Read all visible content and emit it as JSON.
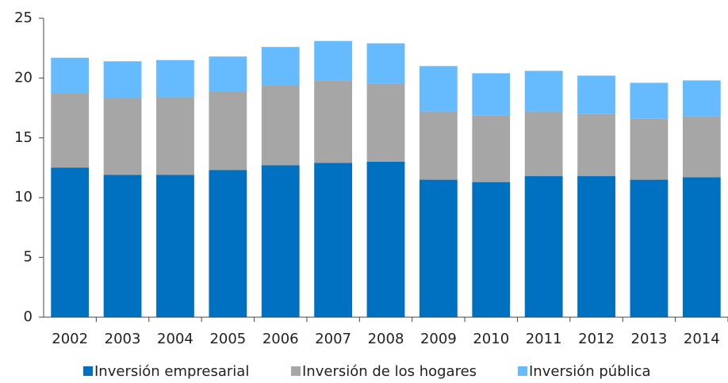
{
  "chart_data": {
    "type": "stacked_bar",
    "categories": [
      "2002",
      "2003",
      "2004",
      "2005",
      "2006",
      "2007",
      "2008",
      "2009",
      "2010",
      "2011",
      "2012",
      "2013",
      "2014"
    ],
    "series": [
      {
        "name": "Inversión empresarial",
        "color": "#0070c0",
        "values": [
          12.5,
          11.9,
          11.9,
          12.3,
          12.7,
          12.9,
          13.0,
          11.5,
          11.3,
          11.8,
          11.8,
          11.5,
          11.7
        ]
      },
      {
        "name": "Inversión de los hogares",
        "color": "#a6a6a6",
        "values": [
          6.2,
          6.4,
          6.5,
          6.6,
          6.7,
          6.9,
          6.5,
          5.7,
          5.6,
          5.4,
          5.2,
          5.1,
          5.1
        ]
      },
      {
        "name": "Inversión pública",
        "color": "#66bbff",
        "values": [
          3.0,
          3.1,
          3.1,
          2.9,
          3.2,
          3.3,
          3.4,
          3.8,
          3.5,
          3.4,
          3.2,
          3.0,
          3.0
        ]
      }
    ],
    "ylim": [
      0,
      25
    ],
    "yticks": [
      0,
      5,
      10,
      15,
      20,
      25
    ],
    "grid": false,
    "legend": "bottom"
  }
}
